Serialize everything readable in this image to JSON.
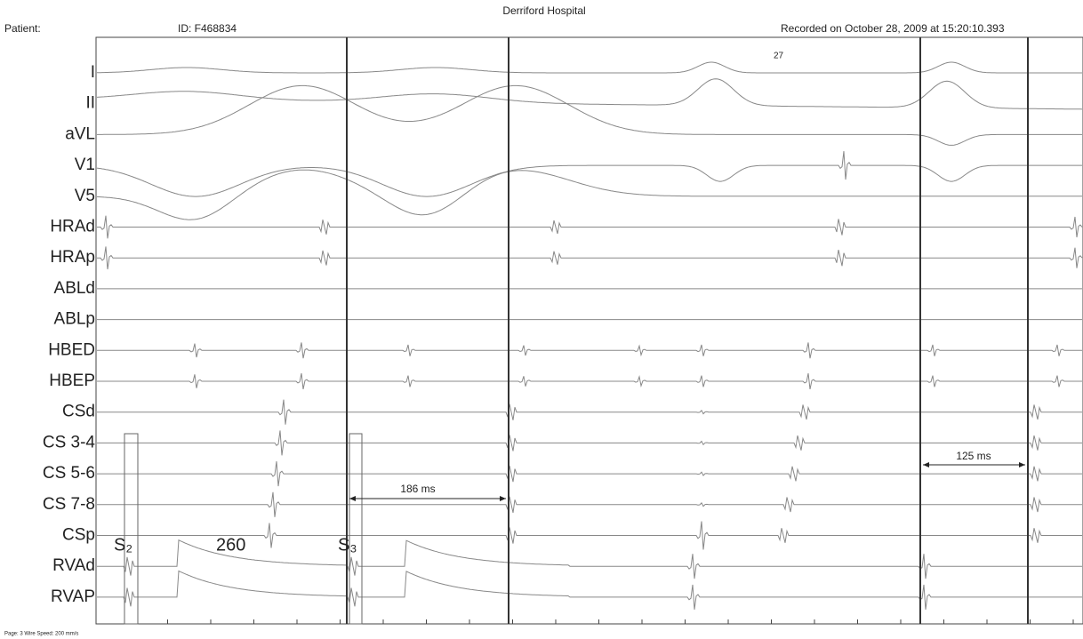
{
  "header": {
    "hospital": "Derriford Hospital",
    "patient": "Patient:",
    "id": "ID: F468834",
    "recorded": "Recorded on October 28, 2009 at 15:20:10.393"
  },
  "channels": [
    "I",
    "II",
    "aVL",
    "V1",
    "V5",
    "HRAd",
    "HRAp",
    "ABLd",
    "ABLp",
    "HBED",
    "HBEP",
    "CSd",
    "CS 3-4",
    "CS 5-6",
    "CS 7-8",
    "CSp",
    "RVAd",
    "RVAP"
  ],
  "annotations": {
    "marker": "27",
    "interval1": "186 ms",
    "interval2": "125 ms",
    "stim1": "S₂",
    "cycle": "260",
    "stim2": "S₃"
  },
  "footer": "Page: 3 Wire   Speed: 200 mm/s"
}
